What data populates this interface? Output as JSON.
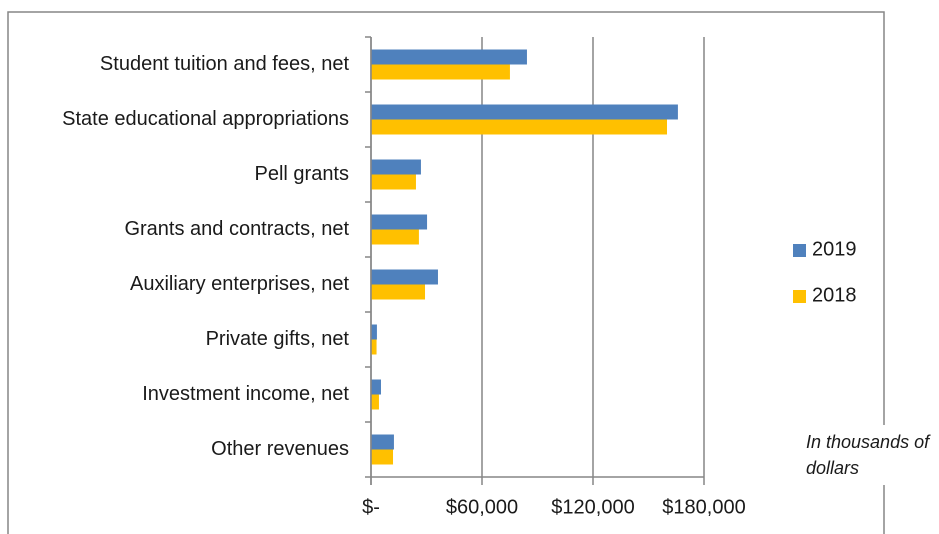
{
  "chart_data": {
    "type": "hbar",
    "categories": [
      "Student tuition and fees, net",
      "State educational appropriations",
      "Pell grants",
      "Grants and contracts, net",
      "Auxiliary enterprises, net",
      "Private gifts, net",
      "Investment income, net",
      "Other revenues"
    ],
    "series": [
      {
        "name": "2019",
        "color": "#4f81bd",
        "values": [
          84300,
          165900,
          27000,
          30300,
          36200,
          3200,
          5400,
          12400
        ]
      },
      {
        "name": "2018",
        "color": "#ffc000",
        "values": [
          75100,
          160000,
          24300,
          25900,
          29200,
          3000,
          4300,
          11900
        ]
      }
    ],
    "xlim": [
      0,
      180000
    ],
    "xticks": [
      {
        "value": 0,
        "label": "$-"
      },
      {
        "value": 60000,
        "label": "$60,000"
      },
      {
        "value": 120000,
        "label": "$120,000"
      },
      {
        "value": 180000,
        "label": "$180,000"
      }
    ],
    "grid": true,
    "legend": "right",
    "annotation": [
      "In thousands of",
      "dollars"
    ]
  }
}
